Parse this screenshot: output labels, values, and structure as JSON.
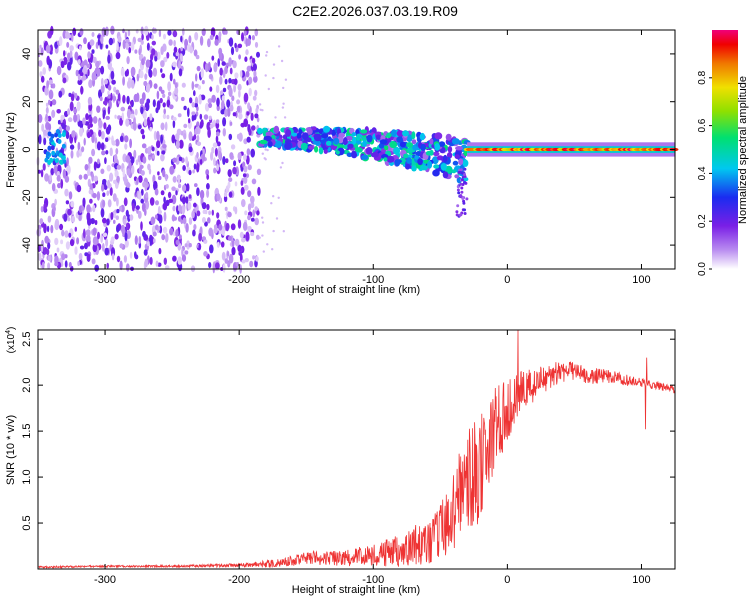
{
  "title": "C2E2.2026.037.03.19.R09",
  "chart_data": [
    {
      "type": "heatmap",
      "xlabel": "Height of straight line (km)",
      "ylabel": "Frequency (Hz)",
      "xlim": [
        -350,
        125
      ],
      "ylim": [
        -50,
        50
      ],
      "xticks": [
        -300,
        -200,
        -100,
        0,
        100
      ],
      "yticks": [
        -40,
        -20,
        0,
        20,
        40
      ],
      "colorbar": {
        "label": "Normalized spectral amplitude",
        "range": [
          0,
          1
        ],
        "ticks": [
          "0.0",
          "0.2",
          "0.4",
          "0.6",
          "0.8"
        ],
        "tick_values": [
          0.0,
          0.2,
          0.4,
          0.6,
          0.8
        ]
      },
      "features": [
        {
          "name": "noise",
          "x_range": [
            -350,
            -185
          ],
          "freq_range": [
            -50,
            50
          ],
          "amplitude": [
            0.0,
            0.25
          ]
        },
        {
          "name": "signal-band-onset",
          "x_range": [
            -185,
            -30
          ],
          "freq_center": [
            5,
            -5
          ],
          "amplitude": [
            0.1,
            0.55
          ]
        },
        {
          "name": "signal-carrier",
          "x_range": [
            -30,
            125
          ],
          "freq_center": 0,
          "amplitude": [
            0.7,
            1.0
          ]
        }
      ]
    },
    {
      "type": "line",
      "xlabel": "Height of straight line (km)",
      "ylabel": "SNR (10 * v/v)",
      "exponent_label": "(x10",
      "exponent_power": "4",
      "exponent_close": ")",
      "xlim": [
        -350,
        125
      ],
      "ylim": [
        0,
        2.6
      ],
      "xticks": [
        -300,
        -200,
        -100,
        0,
        100
      ],
      "yticks": [
        "0.5",
        "1.0",
        "1.5",
        "2.0",
        "2.5"
      ],
      "ytick_values": [
        0.5,
        1.0,
        1.5,
        2.0,
        2.5
      ],
      "series": [
        {
          "name": "SNR",
          "color": "#ee3333",
          "x": [
            -350,
            -300,
            -250,
            -200,
            -170,
            -150,
            -120,
            -100,
            -80,
            -60,
            -50,
            -40,
            -30,
            -20,
            -10,
            0,
            10,
            20,
            30,
            40,
            50,
            60,
            70,
            80,
            90,
            100,
            110,
            125
          ],
          "y": [
            0.02,
            0.03,
            0.03,
            0.04,
            0.06,
            0.12,
            0.12,
            0.15,
            0.2,
            0.3,
            0.4,
            0.65,
            0.95,
            1.1,
            1.5,
            1.75,
            1.9,
            2.0,
            2.1,
            2.15,
            2.15,
            2.1,
            2.1,
            2.08,
            2.05,
            2.03,
            2.0,
            1.95
          ],
          "noise": [
            0.01,
            0.01,
            0.01,
            0.02,
            0.05,
            0.07,
            0.09,
            0.12,
            0.18,
            0.25,
            0.3,
            0.45,
            0.55,
            0.6,
            0.5,
            0.35,
            0.25,
            0.2,
            0.15,
            0.12,
            0.1,
            0.09,
            0.08,
            0.07,
            0.06,
            0.05,
            0.05,
            0.04
          ],
          "spikes": [
            {
              "x": 8,
              "y": 2.62
            },
            {
              "x": 103,
              "y": 1.52
            },
            {
              "x": 104,
              "y": 2.3
            }
          ]
        }
      ]
    }
  ]
}
